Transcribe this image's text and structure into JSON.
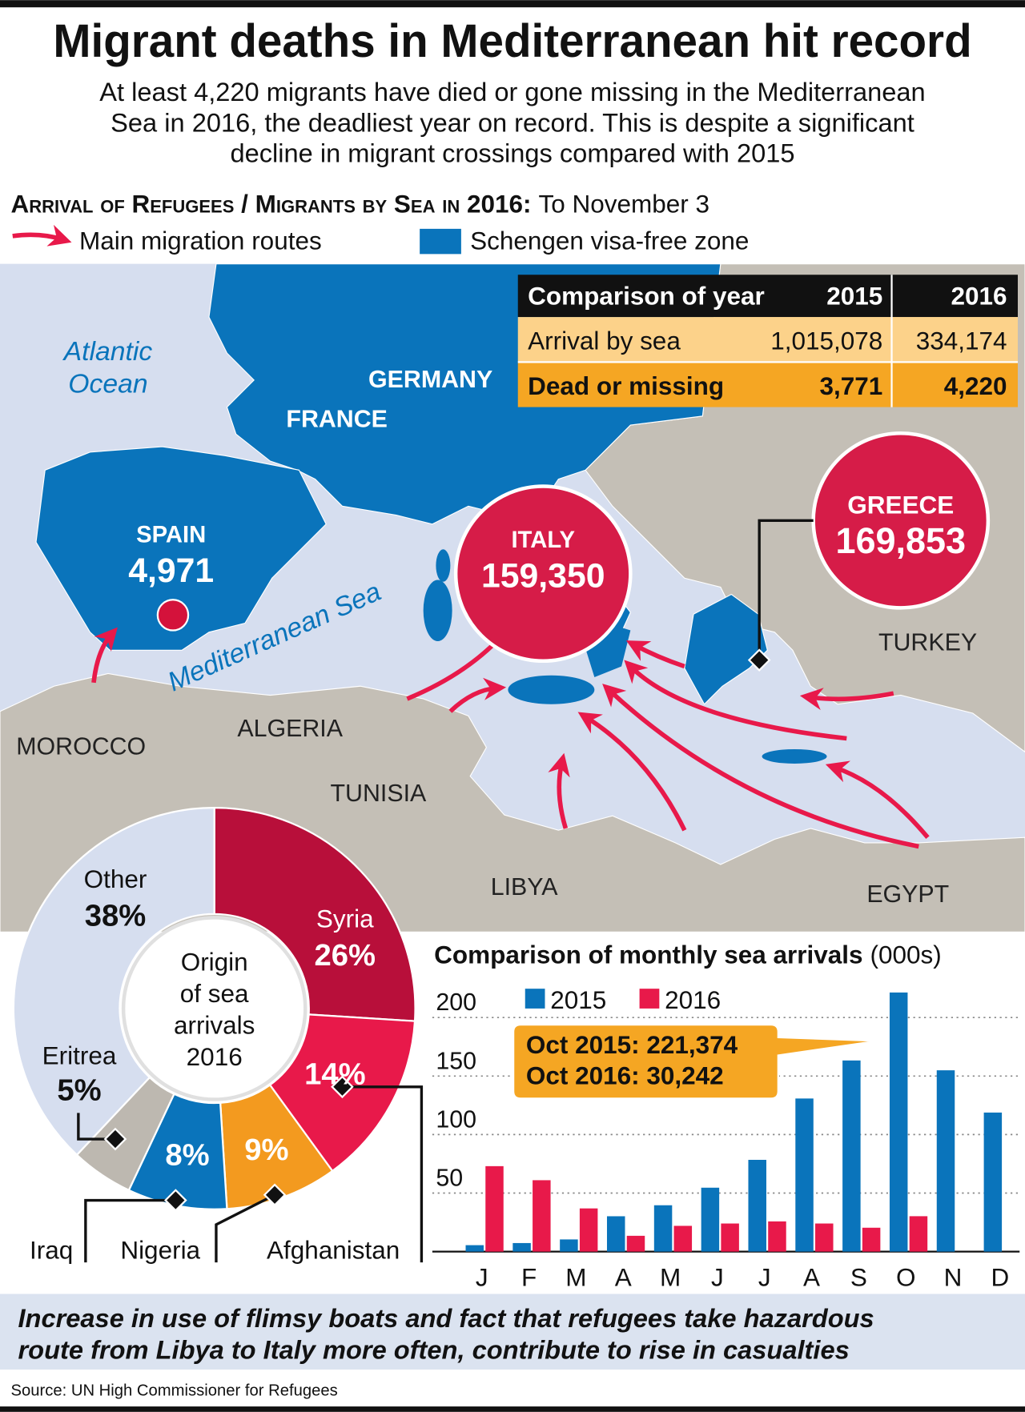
{
  "header": {
    "title": "Migrant deaths in Mediterranean hit record",
    "subtitle": [
      "At least 4,220 migrants have died or gone missing in the Mediterranean",
      "Sea in 2016, the deadliest year on record. This is despite a significant",
      "decline in migrant crossings compared with 2015"
    ]
  },
  "map": {
    "heading": "Arrival of Refugees / Migrants by Sea in 2016:",
    "heading_note": "To November 3",
    "legend": [
      "Main migration routes",
      "Schengen visa-free zone"
    ],
    "ocean": [
      "Atlantic",
      "Ocean"
    ],
    "sea": "Mediterranean Sea",
    "labels": [
      "GERMANY",
      "FRANCE",
      "TURKEY",
      "MOROCCO",
      "ALGERIA",
      "TUNISIA",
      "LIBYA",
      "EGYPT"
    ],
    "arrivals": [
      {
        "name": "SPAIN",
        "value": "4,971"
      },
      {
        "name": "ITALY",
        "value": "159,350"
      },
      {
        "name": "GREECE",
        "value": "169,853"
      }
    ],
    "table": {
      "header": [
        "Comparison of year",
        "2015",
        "2016"
      ],
      "rows": [
        [
          "Arrival by sea",
          "1,015,078",
          "334,174"
        ],
        [
          "Dead or missing",
          "3,771",
          "4,220"
        ]
      ]
    }
  },
  "chart_data": [
    {
      "type": "pie",
      "title": [
        "Origin",
        "of sea",
        "arrivals",
        "2016"
      ],
      "categories": [
        "Syria",
        "Afghanistan",
        "Nigeria",
        "Iraq",
        "Eritrea",
        "Other"
      ],
      "values": [
        26,
        14,
        9,
        8,
        5,
        38
      ],
      "value_labels": [
        "26%",
        "14%",
        "9%",
        "8%",
        "5%",
        "38%"
      ],
      "colors": [
        "#b80f3a",
        "#e8194a",
        "#f39a1f",
        "#0a74bb",
        "#bdb8b0",
        "#d6deef"
      ]
    },
    {
      "type": "bar",
      "title": "Comparison of monthly sea arrivals",
      "subtitle": "(000s)",
      "categories": [
        "J",
        "F",
        "M",
        "A",
        "M",
        "J",
        "J",
        "A",
        "S",
        "O",
        "N",
        "D"
      ],
      "series": [
        {
          "name": "2015",
          "color": "#0a74bb",
          "values": [
            5.5,
            7.3,
            10.4,
            30.2,
            39.6,
            54.6,
            78.4,
            130.8,
            163.3,
            221.374,
            154.9,
            118.8
          ]
        },
        {
          "name": "2016",
          "color": "#e8194a",
          "values": [
            73,
            61,
            36.9,
            13.5,
            22,
            24,
            25.8,
            24,
            20.4,
            30.242,
            null,
            null
          ]
        }
      ],
      "ylim": [
        0,
        225
      ],
      "yticks": [
        50,
        100,
        150,
        200
      ],
      "grid": true,
      "annotation": [
        "Oct 2015: 221,374",
        "Oct 2016: 30,242"
      ]
    }
  ],
  "footer": {
    "note": [
      "Increase in use of flimsy boats and fact that refugees take hazardous",
      "route from Libya to Italy more often, contribute to rise in casualties"
    ],
    "source": "Source: UN High Commissioner for Refugees"
  }
}
